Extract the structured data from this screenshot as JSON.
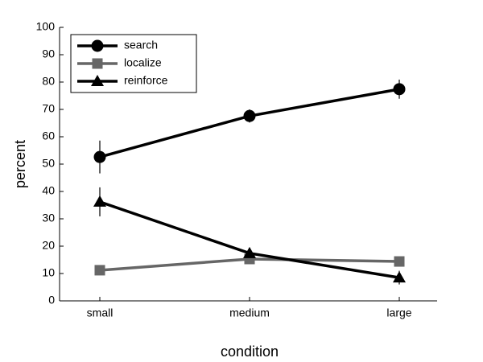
{
  "chart_data": {
    "type": "line",
    "x_label": "condition",
    "y_label": "percent",
    "categories": [
      "small",
      "medium",
      "large"
    ],
    "series": [
      {
        "name": "search",
        "color": "#000000",
        "marker": "circle",
        "values": [
          52.6,
          67.6,
          77.4
        ],
        "errors": [
          6,
          2.4,
          3.5
        ]
      },
      {
        "name": "localize",
        "color": "#666666",
        "marker": "square",
        "values": [
          11.2,
          15.3,
          14.4
        ],
        "errors": [
          1,
          1,
          1
        ]
      },
      {
        "name": "reinforce",
        "color": "#000000",
        "marker": "triangle",
        "values": [
          36.2,
          17.4,
          8.5
        ],
        "errors": [
          5.3,
          1.5,
          2.5
        ]
      }
    ],
    "ylim": [
      0,
      100
    ],
    "yticks": [
      0,
      10,
      20,
      30,
      40,
      50,
      60,
      70,
      80,
      90,
      100
    ],
    "grid": false,
    "legend": "upper-left"
  }
}
